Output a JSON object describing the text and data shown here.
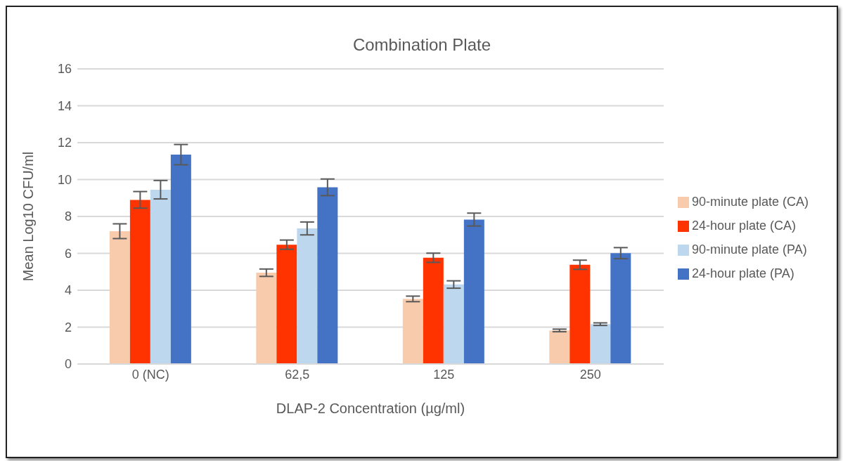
{
  "chart_data": {
    "type": "bar",
    "title": "Combination Plate",
    "xlabel": "DLAP-2 Concentration (µg/ml)",
    "ylabel": "Mean Log10 CFU/ml",
    "categories": [
      "0 (NC)",
      "62,5",
      "125",
      "250"
    ],
    "series": [
      {
        "name": "90-minute plate (CA)",
        "color": "#f8cbad",
        "values": [
          7.2,
          4.95,
          3.53,
          1.82
        ],
        "errors": [
          0.4,
          0.2,
          0.15,
          0.07
        ]
      },
      {
        "name": "24-hour plate (CA)",
        "color": "#ff3300",
        "values": [
          8.9,
          6.47,
          5.76,
          5.38
        ],
        "errors": [
          0.45,
          0.25,
          0.25,
          0.25
        ]
      },
      {
        "name": "90-minute plate (PA)",
        "color": "#bdd7ee",
        "values": [
          9.45,
          7.35,
          4.31,
          2.16
        ],
        "errors": [
          0.5,
          0.35,
          0.2,
          0.07
        ]
      },
      {
        "name": "24-hour plate (PA)",
        "color": "#4472c4",
        "values": [
          11.35,
          9.58,
          7.83,
          6.01
        ],
        "errors": [
          0.55,
          0.45,
          0.35,
          0.3
        ]
      }
    ],
    "ylim": [
      0,
      16
    ],
    "yticks": [
      0,
      2,
      4,
      6,
      8,
      10,
      12,
      14,
      16
    ],
    "grid": "y",
    "legend": "right"
  }
}
